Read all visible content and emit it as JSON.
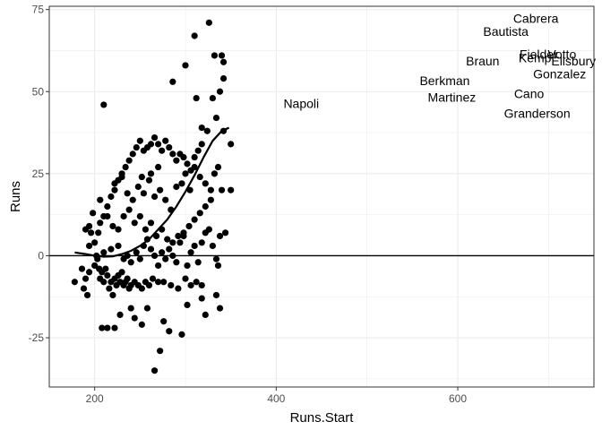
{
  "chart_data": {
    "type": "scatter",
    "xlabel": "Runs.Start",
    "ylabel": "Runs",
    "xlim": [
      150,
      750
    ],
    "ylim": [
      -40,
      76
    ],
    "x_ticks": [
      200,
      400,
      600
    ],
    "y_ticks": [
      -25,
      0,
      25,
      50,
      75
    ],
    "x_tick_labels": [
      "200",
      "400",
      "600"
    ],
    "y_tick_labels": [
      "-25",
      "0",
      "25",
      "50",
      "75"
    ],
    "grid": true,
    "reference_line_y": 0,
    "colors": {
      "points": "#000000",
      "smooth": "#000000",
      "grid": "#ebebeb",
      "panel_border": "#333333"
    },
    "points": [
      [
        178,
        -8
      ],
      [
        186,
        -4
      ],
      [
        188,
        -10
      ],
      [
        190,
        -7
      ],
      [
        192,
        -12
      ],
      [
        194,
        -5
      ],
      [
        190,
        8
      ],
      [
        194,
        9
      ],
      [
        196,
        7
      ],
      [
        200,
        -3
      ],
      [
        203,
        -1
      ],
      [
        205,
        -4
      ],
      [
        206,
        -7
      ],
      [
        208,
        -5
      ],
      [
        210,
        -8
      ],
      [
        212,
        -4
      ],
      [
        214,
        -6
      ],
      [
        216,
        -10
      ],
      [
        218,
        -8
      ],
      [
        220,
        -12
      ],
      [
        222,
        -7
      ],
      [
        224,
        -9
      ],
      [
        226,
        -6
      ],
      [
        228,
        -8
      ],
      [
        230,
        -5
      ],
      [
        232,
        -9
      ],
      [
        234,
        -8
      ],
      [
        236,
        -7
      ],
      [
        238,
        -10
      ],
      [
        240,
        -9
      ],
      [
        244,
        -8
      ],
      [
        248,
        -9
      ],
      [
        252,
        -10
      ],
      [
        256,
        -8
      ],
      [
        260,
        -9
      ],
      [
        264,
        -7
      ],
      [
        270,
        -8
      ],
      [
        276,
        -8
      ],
      [
        284,
        -9
      ],
      [
        292,
        -10
      ],
      [
        300,
        -7
      ],
      [
        306,
        -9
      ],
      [
        312,
        -8
      ],
      [
        318,
        -9
      ],
      [
        208,
        -22
      ],
      [
        214,
        -22
      ],
      [
        222,
        -22
      ],
      [
        228,
        -18
      ],
      [
        240,
        -16
      ],
      [
        244,
        -19
      ],
      [
        252,
        -21
      ],
      [
        258,
        -16
      ],
      [
        266,
        -35
      ],
      [
        272,
        -29
      ],
      [
        276,
        -20
      ],
      [
        282,
        -23
      ],
      [
        296,
        -24
      ],
      [
        302,
        -15
      ],
      [
        318,
        -13
      ],
      [
        322,
        -18
      ],
      [
        334,
        -12
      ],
      [
        338,
        -16
      ],
      [
        336,
        -3
      ],
      [
        194,
        3
      ],
      [
        200,
        4
      ],
      [
        204,
        7
      ],
      [
        206,
        10
      ],
      [
        210,
        12
      ],
      [
        214,
        15
      ],
      [
        218,
        18
      ],
      [
        222,
        20
      ],
      [
        226,
        23
      ],
      [
        230,
        25
      ],
      [
        234,
        27
      ],
      [
        238,
        29
      ],
      [
        242,
        31
      ],
      [
        246,
        33
      ],
      [
        250,
        35
      ],
      [
        254,
        32
      ],
      [
        258,
        33
      ],
      [
        262,
        34
      ],
      [
        266,
        36
      ],
      [
        270,
        34
      ],
      [
        274,
        32
      ],
      [
        278,
        35
      ],
      [
        282,
        33
      ],
      [
        286,
        31
      ],
      [
        290,
        29
      ],
      [
        294,
        31
      ],
      [
        298,
        30
      ],
      [
        302,
        28
      ],
      [
        306,
        26
      ],
      [
        310,
        30
      ],
      [
        314,
        32
      ],
      [
        318,
        34
      ],
      [
        198,
        13
      ],
      [
        206,
        17
      ],
      [
        214,
        12
      ],
      [
        220,
        9
      ],
      [
        226,
        8
      ],
      [
        232,
        12
      ],
      [
        238,
        14
      ],
      [
        244,
        10
      ],
      [
        250,
        12
      ],
      [
        256,
        8
      ],
      [
        262,
        10
      ],
      [
        268,
        6
      ],
      [
        274,
        8
      ],
      [
        280,
        5
      ],
      [
        286,
        4
      ],
      [
        292,
        6
      ],
      [
        298,
        7
      ],
      [
        304,
        9
      ],
      [
        310,
        11
      ],
      [
        316,
        13
      ],
      [
        322,
        15
      ],
      [
        328,
        17
      ],
      [
        202,
        0
      ],
      [
        210,
        1
      ],
      [
        218,
        2
      ],
      [
        226,
        3
      ],
      [
        232,
        -1
      ],
      [
        236,
        0
      ],
      [
        240,
        -2
      ],
      [
        246,
        1
      ],
      [
        250,
        -1
      ],
      [
        254,
        3
      ],
      [
        258,
        5
      ],
      [
        262,
        2
      ],
      [
        266,
        0
      ],
      [
        270,
        -3
      ],
      [
        274,
        1
      ],
      [
        278,
        -1
      ],
      [
        282,
        2
      ],
      [
        286,
        0
      ],
      [
        290,
        -2
      ],
      [
        294,
        4
      ],
      [
        298,
        6
      ],
      [
        302,
        -3
      ],
      [
        306,
        1
      ],
      [
        310,
        3
      ],
      [
        314,
        -2
      ],
      [
        318,
        4
      ],
      [
        322,
        7
      ],
      [
        326,
        8
      ],
      [
        330,
        3
      ],
      [
        334,
        -1
      ],
      [
        338,
        6
      ],
      [
        344,
        7
      ],
      [
        222,
        22
      ],
      [
        230,
        24
      ],
      [
        236,
        19
      ],
      [
        242,
        17
      ],
      [
        248,
        21
      ],
      [
        254,
        19
      ],
      [
        260,
        23
      ],
      [
        266,
        18
      ],
      [
        272,
        20
      ],
      [
        278,
        17
      ],
      [
        284,
        14
      ],
      [
        290,
        21
      ],
      [
        296,
        22
      ],
      [
        300,
        25
      ],
      [
        305,
        20
      ],
      [
        310,
        27
      ],
      [
        316,
        24
      ],
      [
        322,
        22
      ],
      [
        328,
        20
      ],
      [
        332,
        25
      ],
      [
        336,
        27
      ],
      [
        340,
        20
      ],
      [
        350,
        20
      ],
      [
        350,
        34
      ],
      [
        342,
        38
      ],
      [
        334,
        42
      ],
      [
        338,
        50
      ],
      [
        342,
        54
      ],
      [
        330,
        48
      ],
      [
        324,
        38
      ],
      [
        318,
        39
      ],
      [
        312,
        48
      ],
      [
        300,
        58
      ],
      [
        286,
        53
      ],
      [
        310,
        67
      ],
      [
        326,
        71
      ],
      [
        332,
        61
      ],
      [
        340,
        61
      ],
      [
        342,
        59
      ],
      [
        210,
        46
      ],
      [
        252,
        24
      ],
      [
        262,
        25
      ],
      [
        270,
        27
      ]
    ],
    "labeled_points": [
      {
        "name": "Napoli",
        "x": 408,
        "y": 45
      },
      {
        "name": "Berkman",
        "x": 558,
        "y": 52
      },
      {
        "name": "Martinez",
        "x": 567,
        "y": 47
      },
      {
        "name": "Braun",
        "x": 609,
        "y": 58
      },
      {
        "name": "Bautista",
        "x": 628,
        "y": 67
      },
      {
        "name": "Cabrera",
        "x": 661,
        "y": 71
      },
      {
        "name": "Cano",
        "x": 662,
        "y": 48
      },
      {
        "name": "Granderson",
        "x": 651,
        "y": 42
      },
      {
        "name": "Fielder",
        "x": 668,
        "y": 60
      },
      {
        "name": "Kemp",
        "x": 667,
        "y": 59
      },
      {
        "name": "Votto",
        "x": 699,
        "y": 60
      },
      {
        "name": "Ellsbury",
        "x": 703,
        "y": 58
      },
      {
        "name": "Gonzalez",
        "x": 683,
        "y": 54
      }
    ],
    "smooth_curve": [
      [
        178,
        1
      ],
      [
        190,
        0.5
      ],
      [
        200,
        0
      ],
      [
        210,
        -0.3
      ],
      [
        220,
        -0.2
      ],
      [
        230,
        0.5
      ],
      [
        240,
        1.5
      ],
      [
        250,
        3
      ],
      [
        260,
        5
      ],
      [
        270,
        8
      ],
      [
        280,
        11
      ],
      [
        290,
        15
      ],
      [
        300,
        19.5
      ],
      [
        310,
        24.5
      ],
      [
        320,
        30
      ],
      [
        330,
        35
      ],
      [
        340,
        38
      ],
      [
        348,
        39
      ]
    ]
  }
}
